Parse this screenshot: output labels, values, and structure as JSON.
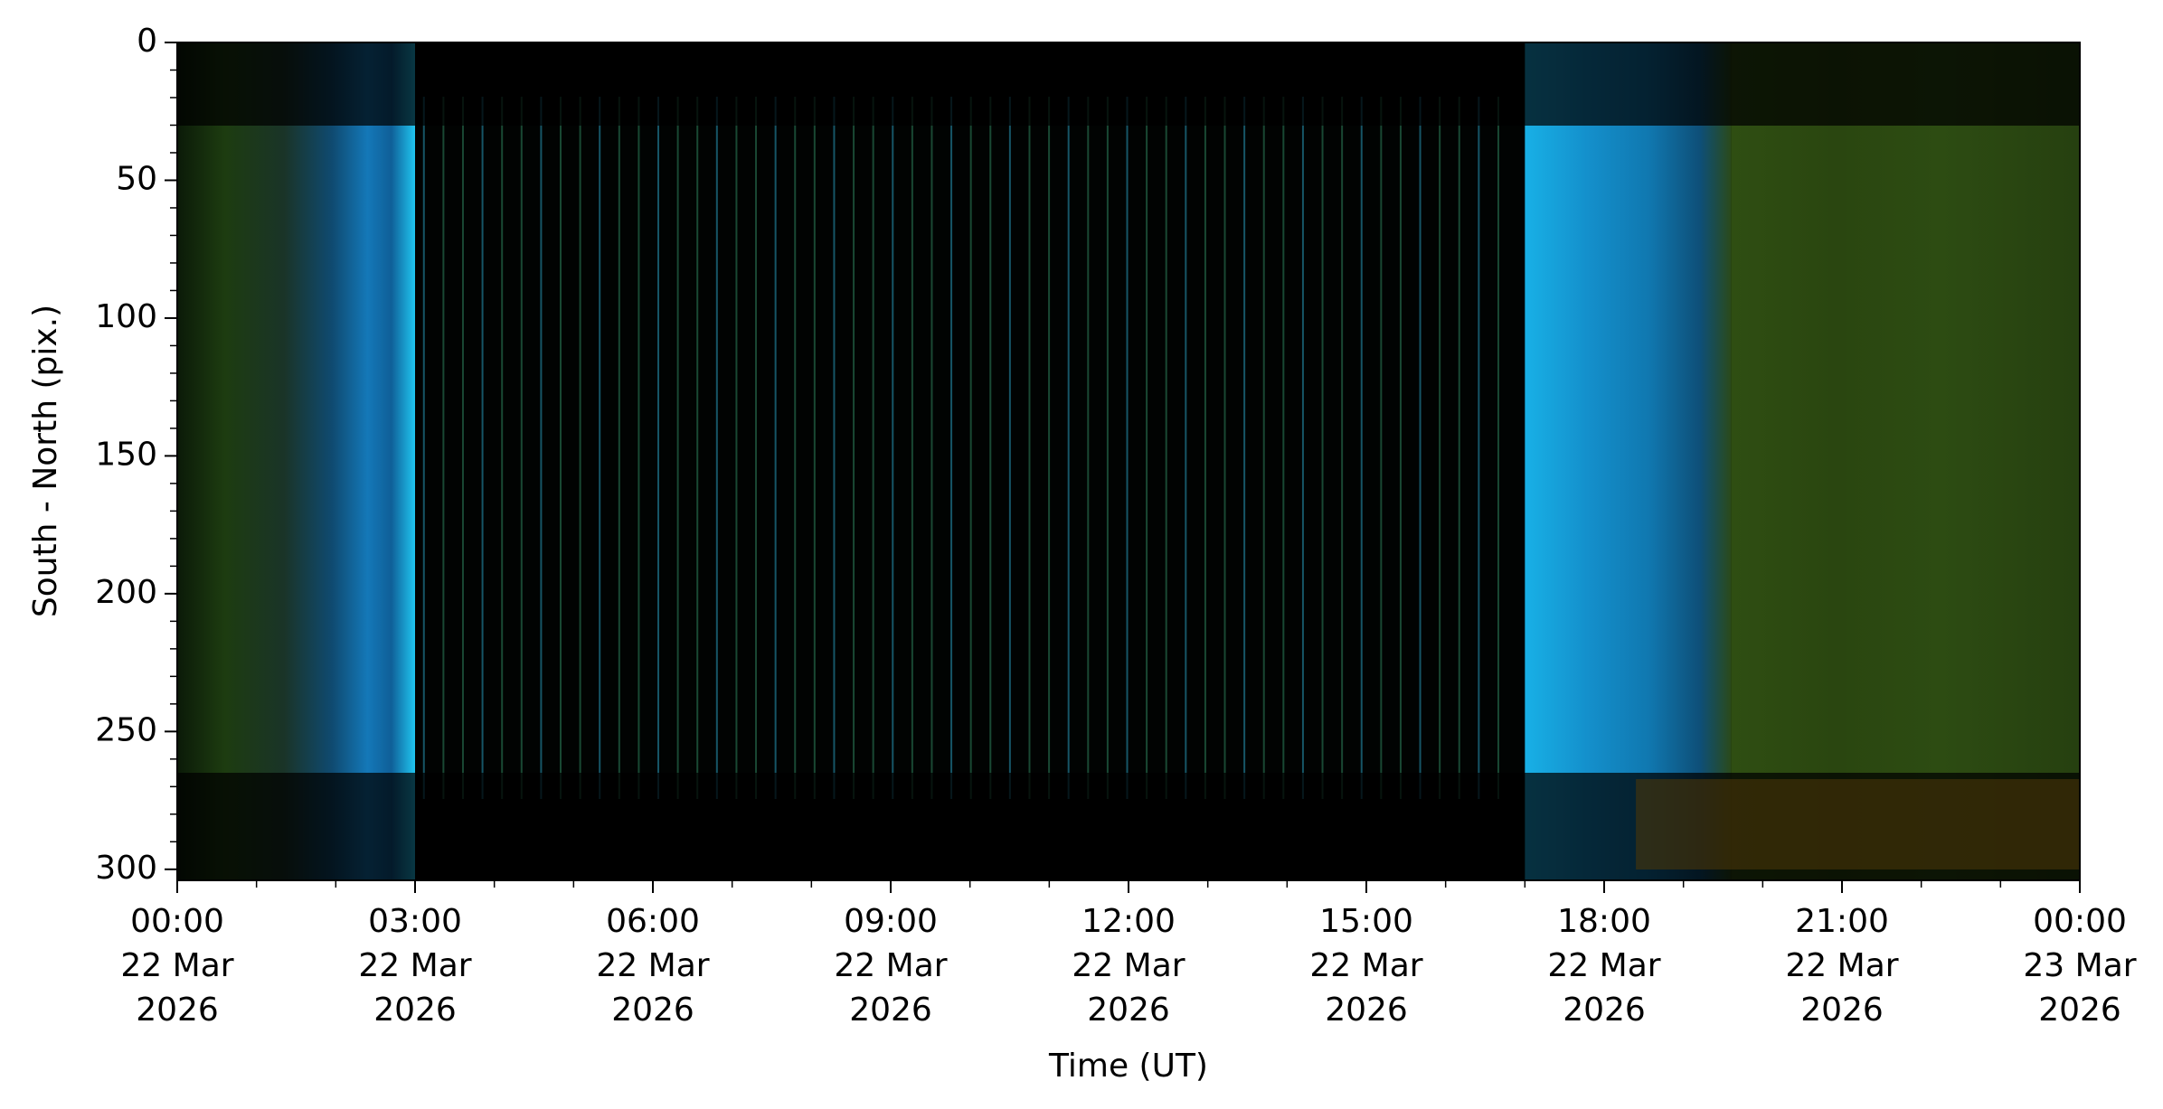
{
  "chart_data": {
    "type": "image",
    "x_label": "Time (UT)",
    "y_label": "South - North (pix.)",
    "xlim": [
      "2026-03-22T00:00",
      "2026-03-23T00:00"
    ],
    "xticks": [
      {
        "value": "2026-03-22T00:00",
        "label": [
          "00:00",
          "22 Mar",
          "2026"
        ]
      },
      {
        "value": "2026-03-22T03:00",
        "label": [
          "03:00",
          "22 Mar",
          "2026"
        ]
      },
      {
        "value": "2026-03-22T06:00",
        "label": [
          "06:00",
          "22 Mar",
          "2026"
        ]
      },
      {
        "value": "2026-03-22T09:00",
        "label": [
          "09:00",
          "22 Mar",
          "2026"
        ]
      },
      {
        "value": "2026-03-22T12:00",
        "label": [
          "12:00",
          "22 Mar",
          "2026"
        ]
      },
      {
        "value": "2026-03-22T15:00",
        "label": [
          "15:00",
          "22 Mar",
          "2026"
        ]
      },
      {
        "value": "2026-03-22T18:00",
        "label": [
          "18:00",
          "22 Mar",
          "2026"
        ]
      },
      {
        "value": "2026-03-22T21:00",
        "label": [
          "21:00",
          "22 Mar",
          "2026"
        ]
      },
      {
        "value": "2026-03-23T00:00",
        "label": [
          "00:00",
          "23 Mar",
          "2026"
        ]
      }
    ],
    "xminorticks": [
      "2026-03-22T01:00",
      "2026-03-22T02:00",
      "2026-03-22T04:00",
      "2026-03-22T05:00",
      "2026-03-22T07:00",
      "2026-03-22T08:00",
      "2026-03-22T10:00",
      "2026-03-22T11:00",
      "2026-03-22T13:00",
      "2026-03-22T14:00",
      "2026-03-22T16:00",
      "2026-03-22T17:00",
      "2026-03-22T19:00",
      "2026-03-22T20:00",
      "2026-03-22T22:00",
      "2026-03-22T23:00"
    ],
    "ylim": [
      304,
      0
    ],
    "yticks": [
      0,
      50,
      100,
      150,
      200,
      250,
      300
    ],
    "yminorticks": [
      10,
      20,
      30,
      40,
      60,
      70,
      80,
      90,
      110,
      120,
      130,
      140,
      160,
      170,
      180,
      190,
      210,
      220,
      230,
      240,
      260,
      270,
      280,
      290
    ]
  }
}
